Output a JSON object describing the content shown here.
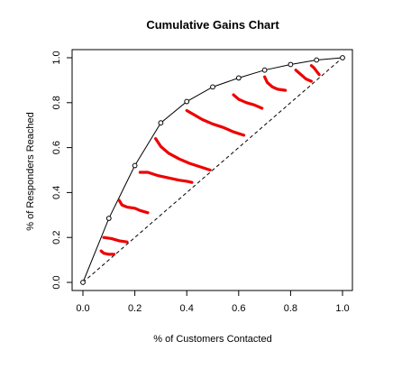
{
  "chart_data": {
    "type": "line",
    "title": "Cumulative Gains Chart",
    "xlabel": "% of Customers Contacted",
    "ylabel": "% of Responders Reached",
    "xlim": [
      0,
      1
    ],
    "ylim": [
      0,
      1
    ],
    "x_ticks": [
      "0.0",
      "0.2",
      "0.4",
      "0.6",
      "0.8",
      "1.0"
    ],
    "y_ticks": [
      "0.0",
      "0.2",
      "0.4",
      "0.6",
      "0.8",
      "1.0"
    ],
    "grid": false,
    "legend": "none",
    "series": [
      {
        "style": "solid-with-circles",
        "color": "#000000",
        "x": [
          0.0,
          0.1,
          0.2,
          0.3,
          0.4,
          0.5,
          0.6,
          0.7,
          0.8,
          0.9,
          1.0
        ],
        "y": [
          0.0,
          0.285,
          0.52,
          0.71,
          0.805,
          0.87,
          0.91,
          0.945,
          0.97,
          0.99,
          1.0
        ]
      },
      {
        "style": "dashed",
        "color": "#000000",
        "x": [
          0.0,
          1.0
        ],
        "y": [
          0.0,
          1.0
        ]
      }
    ],
    "red_strokes": {
      "color": "#ee0000",
      "strokes": [
        {
          "x": [
            0.07,
            0.08,
            0.1,
            0.12
          ],
          "y": [
            0.14,
            0.13,
            0.125,
            0.125
          ]
        },
        {
          "x": [
            0.08,
            0.11,
            0.14,
            0.17
          ],
          "y": [
            0.2,
            0.195,
            0.185,
            0.18
          ]
        },
        {
          "x": [
            0.14,
            0.15,
            0.17,
            0.2,
            0.22,
            0.25
          ],
          "y": [
            0.365,
            0.345,
            0.335,
            0.33,
            0.32,
            0.31
          ]
        },
        {
          "x": [
            0.22,
            0.25,
            0.29,
            0.33,
            0.37,
            0.4,
            0.42
          ],
          "y": [
            0.49,
            0.49,
            0.475,
            0.465,
            0.455,
            0.45,
            0.445
          ]
        },
        {
          "x": [
            0.28,
            0.3,
            0.33,
            0.37,
            0.41,
            0.45,
            0.49
          ],
          "y": [
            0.64,
            0.605,
            0.575,
            0.55,
            0.53,
            0.515,
            0.5
          ]
        },
        {
          "x": [
            0.4,
            0.43,
            0.46,
            0.5,
            0.54,
            0.58,
            0.62
          ],
          "y": [
            0.765,
            0.745,
            0.725,
            0.705,
            0.69,
            0.67,
            0.655
          ]
        },
        {
          "x": [
            0.58,
            0.6,
            0.63,
            0.66,
            0.69
          ],
          "y": [
            0.835,
            0.815,
            0.8,
            0.79,
            0.775
          ]
        },
        {
          "x": [
            0.7,
            0.71,
            0.73,
            0.75,
            0.78
          ],
          "y": [
            0.915,
            0.89,
            0.87,
            0.86,
            0.855
          ]
        },
        {
          "x": [
            0.82,
            0.84,
            0.86,
            0.88
          ],
          "y": [
            0.945,
            0.925,
            0.905,
            0.895
          ]
        },
        {
          "x": [
            0.88,
            0.89,
            0.9,
            0.91
          ],
          "y": [
            0.965,
            0.955,
            0.94,
            0.925
          ]
        }
      ]
    }
  }
}
